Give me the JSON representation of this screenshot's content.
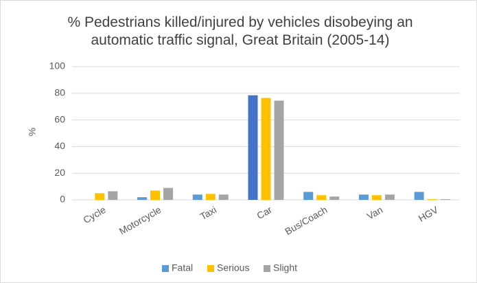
{
  "chart_data": {
    "type": "bar",
    "title": "% Pedestrians killed/injured by vehicles disobeying an automatic traffic signal, Great Britain (2005-14)",
    "y_label": "%",
    "categories": [
      "Cycle",
      "Motorcycle",
      "Taxi",
      "Car",
      "Bus/Coach",
      "Van",
      "HGV"
    ],
    "series": [
      {
        "name": "Fatal",
        "color": "#5b9bd5",
        "colors": [
          "#5b9bd5",
          "#5b9bd5",
          "#5b9bd5",
          "#4472c4",
          "#5b9bd5",
          "#5b9bd5",
          "#5b9bd5"
        ],
        "values": [
          0,
          2,
          4,
          78.5,
          6,
          4,
          6
        ]
      },
      {
        "name": "Serious",
        "color": "#ffc000",
        "values": [
          5,
          7,
          4.5,
          76.5,
          3.5,
          3.5,
          0.5
        ]
      },
      {
        "name": "Slight",
        "color": "#a5a5a5",
        "values": [
          6.5,
          9,
          4,
          74.5,
          2.5,
          4,
          0.5
        ]
      }
    ],
    "ylim": [
      0,
      100
    ],
    "yticks": [
      0,
      20,
      40,
      60,
      80,
      100
    ],
    "grid": true,
    "legend": "bottom"
  }
}
